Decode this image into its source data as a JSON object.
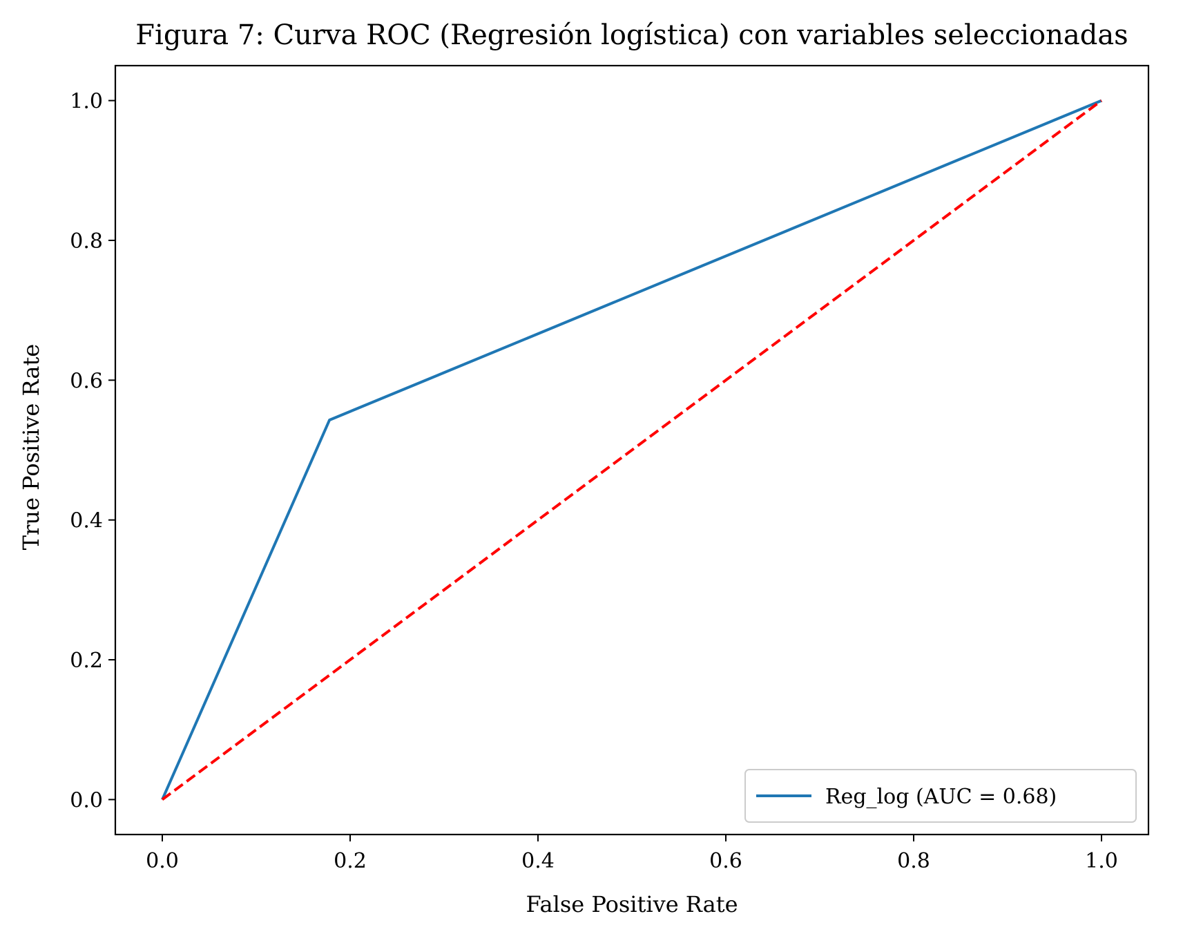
{
  "chart_data": {
    "type": "line",
    "title": "Figura 7: Curva ROC (Regresión logística) con variables seleccionadas",
    "xlabel": "False Positive Rate",
    "ylabel": "True Positive Rate",
    "xlim": [
      -0.05,
      1.05
    ],
    "ylim": [
      -0.05,
      1.05
    ],
    "xticks": [
      0.0,
      0.2,
      0.4,
      0.6,
      0.8,
      1.0
    ],
    "xtick_labels": [
      "0.0",
      "0.2",
      "0.4",
      "0.6",
      "0.8",
      "1.0"
    ],
    "yticks": [
      0.0,
      0.2,
      0.4,
      0.6,
      0.8,
      1.0
    ],
    "ytick_labels": [
      "0.0",
      "0.2",
      "0.4",
      "0.6",
      "0.8",
      "1.0"
    ],
    "grid": false,
    "legend_position": "lower right",
    "series": [
      {
        "name": "Reg_log (AUC = 0.68)",
        "color": "#1f77b4",
        "style": "solid",
        "x": [
          0.0,
          0.178,
          1.0
        ],
        "y": [
          0.0,
          0.543,
          1.0
        ]
      },
      {
        "color": "#ff0000",
        "style": "dashed",
        "x": [
          0.0,
          1.0
        ],
        "y": [
          0.0,
          1.0
        ]
      }
    ]
  }
}
